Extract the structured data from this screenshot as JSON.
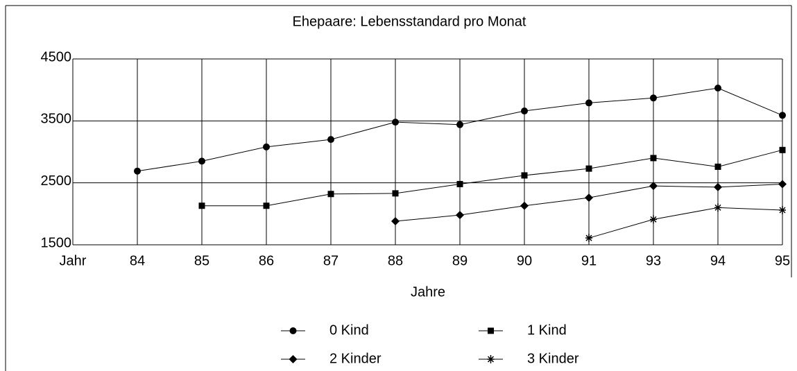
{
  "chart_data": {
    "type": "line",
    "title": "Ehepaare: Lebensstandard pro Monat",
    "x_label": "Jahre",
    "categories": [
      "Jahr",
      "84",
      "85",
      "86",
      "87",
      "88",
      "89",
      "90",
      "91",
      "93",
      "94",
      "95"
    ],
    "series": [
      {
        "name": "0 Kind",
        "color": "#000000",
        "marker": "circle",
        "values": [
          null,
          2690,
          2850,
          3080,
          3200,
          3480,
          3440,
          3660,
          3790,
          3870,
          4030,
          3590
        ]
      },
      {
        "name": "1 Kind",
        "color": "#000000",
        "marker": "square",
        "values": [
          null,
          null,
          2130,
          2130,
          2320,
          2330,
          2480,
          2620,
          2730,
          2900,
          2760,
          3030
        ]
      },
      {
        "name": "2 Kinder",
        "color": "#000000",
        "marker": "diamond",
        "values": [
          null,
          null,
          null,
          null,
          null,
          1880,
          1980,
          2130,
          2260,
          2450,
          2430,
          2480
        ]
      },
      {
        "name": "3 Kinder",
        "color": "#000000",
        "marker": "asterisk",
        "values": [
          null,
          null,
          null,
          null,
          null,
          null,
          null,
          null,
          1610,
          1910,
          2100,
          2060
        ]
      }
    ],
    "ylim": [
      1500,
      4500
    ],
    "yticks": [
      1500,
      2500,
      3500,
      4500
    ],
    "grid": true
  }
}
